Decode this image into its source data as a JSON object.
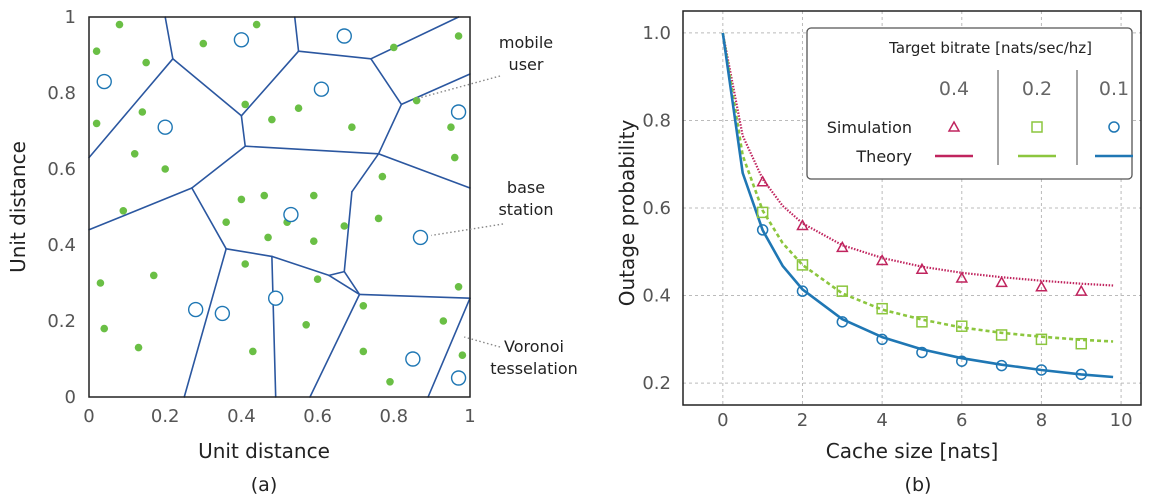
{
  "chart_data": [
    {
      "type": "scatter",
      "caption": "(a)",
      "xlabel": "Unit distance",
      "ylabel": "Unit distance",
      "xlim": [
        0,
        1
      ],
      "ylim": [
        0,
        1
      ],
      "xticks": [
        "0",
        "0.2",
        "0.4",
        "0.6",
        "0.8",
        "1"
      ],
      "yticks": [
        "0",
        "0.2",
        "0.4",
        "0.6",
        "0.8",
        "1"
      ],
      "colors": {
        "users": "#6abf45",
        "stations": "#1f77b4",
        "cells": "#2b57a0"
      },
      "annotations": [
        {
          "lines": [
            "mobile",
            "user"
          ],
          "x": 0.85,
          "y": 0.78
        },
        {
          "lines": [
            "base",
            "station"
          ],
          "x": 0.88,
          "y": 0.42
        },
        {
          "lines": [
            "Voronoi",
            "tesselation"
          ],
          "x": 0.99,
          "y": 0.15
        }
      ],
      "series": [
        {
          "name": "mobile user",
          "points": [
            [
              0.08,
              0.98
            ],
            [
              0.02,
              0.91
            ],
            [
              0.15,
              0.88
            ],
            [
              0.02,
              0.72
            ],
            [
              0.14,
              0.75
            ],
            [
              0.12,
              0.64
            ],
            [
              0.2,
              0.6
            ],
            [
              0.09,
              0.49
            ],
            [
              0.44,
              0.98
            ],
            [
              0.3,
              0.93
            ],
            [
              0.41,
              0.77
            ],
            [
              0.48,
              0.73
            ],
            [
              0.55,
              0.76
            ],
            [
              0.69,
              0.71
            ],
            [
              0.8,
              0.92
            ],
            [
              0.97,
              0.95
            ],
            [
              0.86,
              0.78
            ],
            [
              0.95,
              0.71
            ],
            [
              0.96,
              0.63
            ],
            [
              0.77,
              0.58
            ],
            [
              0.46,
              0.53
            ],
            [
              0.4,
              0.52
            ],
            [
              0.59,
              0.53
            ],
            [
              0.36,
              0.46
            ],
            [
              0.52,
              0.46
            ],
            [
              0.67,
              0.45
            ],
            [
              0.76,
              0.47
            ],
            [
              0.47,
              0.42
            ],
            [
              0.59,
              0.41
            ],
            [
              0.03,
              0.3
            ],
            [
              0.04,
              0.18
            ],
            [
              0.17,
              0.32
            ],
            [
              0.13,
              0.13
            ],
            [
              0.41,
              0.35
            ],
            [
              0.6,
              0.31
            ],
            [
              0.72,
              0.24
            ],
            [
              0.43,
              0.12
            ],
            [
              0.57,
              0.19
            ],
            [
              0.72,
              0.12
            ],
            [
              0.97,
              0.29
            ],
            [
              0.93,
              0.2
            ],
            [
              0.98,
              0.11
            ],
            [
              0.79,
              0.04
            ]
          ]
        },
        {
          "name": "base station",
          "points": [
            [
              0.04,
              0.83
            ],
            [
              0.4,
              0.94
            ],
            [
              0.67,
              0.95
            ],
            [
              0.61,
              0.81
            ],
            [
              0.2,
              0.71
            ],
            [
              0.97,
              0.75
            ],
            [
              0.53,
              0.48
            ],
            [
              0.87,
              0.42
            ],
            [
              0.28,
              0.23
            ],
            [
              0.35,
              0.22
            ],
            [
              0.49,
              0.26
            ],
            [
              0.85,
              0.1
            ],
            [
              0.97,
              0.05
            ]
          ]
        }
      ],
      "cell_edges": [
        [
          [
            0.2,
            1
          ],
          [
            0.22,
            0.89
          ]
        ],
        [
          [
            0.22,
            0.89
          ],
          [
            0.4,
            0.74
          ]
        ],
        [
          [
            0.22,
            0.89
          ],
          [
            0,
            0.63
          ]
        ],
        [
          [
            0.4,
            0.74
          ],
          [
            0.41,
            0.66
          ]
        ],
        [
          [
            0.41,
            0.66
          ],
          [
            0.27,
            0.55
          ]
        ],
        [
          [
            0.27,
            0.55
          ],
          [
            0.27,
            0.55
          ]
        ],
        [
          [
            0.27,
            0.55
          ],
          [
            0,
            0.44
          ]
        ],
        [
          [
            0.27,
            0.55
          ],
          [
            0.36,
            0.39
          ]
        ],
        [
          [
            0.36,
            0.39
          ],
          [
            0.25,
            0
          ]
        ],
        [
          [
            0.36,
            0.39
          ],
          [
            0.48,
            0.37
          ]
        ],
        [
          [
            0.48,
            0.37
          ],
          [
            0.63,
            0.32
          ]
        ],
        [
          [
            0.63,
            0.32
          ],
          [
            0.71,
            0.27
          ]
        ],
        [
          [
            0.71,
            0.27
          ],
          [
            1,
            0.26
          ]
        ],
        [
          [
            0.71,
            0.27
          ],
          [
            0.58,
            0
          ]
        ],
        [
          [
            0.48,
            0.37
          ],
          [
            0.49,
            0
          ]
        ],
        [
          [
            0.41,
            0.66
          ],
          [
            0.76,
            0.64
          ]
        ],
        [
          [
            0.76,
            0.64
          ],
          [
            1,
            0.55
          ]
        ],
        [
          [
            0.76,
            0.64
          ],
          [
            0.82,
            0.77
          ]
        ],
        [
          [
            0.82,
            0.77
          ],
          [
            0.74,
            0.89
          ]
        ],
        [
          [
            0.74,
            0.89
          ],
          [
            0.55,
            0.91
          ]
        ],
        [
          [
            0.55,
            0.91
          ],
          [
            0.4,
            0.74
          ]
        ],
        [
          [
            0.55,
            0.91
          ],
          [
            0.54,
            1
          ]
        ],
        [
          [
            0.74,
            0.89
          ],
          [
            0.97,
            1
          ]
        ],
        [
          [
            0.82,
            0.77
          ],
          [
            1,
            0.85
          ]
        ],
        [
          [
            0.76,
            0.64
          ],
          [
            0.69,
            0.54
          ]
        ],
        [
          [
            0.69,
            0.54
          ],
          [
            0.67,
            0.33
          ]
        ],
        [
          [
            0.67,
            0.33
          ],
          [
            0.63,
            0.32
          ]
        ],
        [
          [
            0.67,
            0.33
          ],
          [
            0.71,
            0.27
          ]
        ],
        [
          [
            1,
            0.26
          ],
          [
            0.89,
            0
          ]
        ]
      ]
    },
    {
      "type": "line",
      "caption": "(b)",
      "xlabel": "Cache size [nats]",
      "ylabel": "Outage probability",
      "xlim": [
        -1,
        10.5
      ],
      "ylim": [
        0.15,
        1.05
      ],
      "xticks": [
        "0",
        "2",
        "4",
        "6",
        "8",
        "10"
      ],
      "yticks": [
        "0.2",
        "0.4",
        "0.6",
        "0.8",
        "1.0"
      ],
      "grid": true,
      "legend": {
        "position": "top-right",
        "title": "Target bitrate [nats/sec/hz]",
        "columns": [
          "0.4",
          "0.2",
          "0.1"
        ],
        "rows": [
          "Simulation",
          "Theory"
        ]
      },
      "series": [
        {
          "bitrate": "0.4",
          "color": "#c0245e",
          "marker": "triangle",
          "simulation": {
            "x": [
              1,
              2,
              3,
              4,
              5,
              6,
              7,
              8,
              9
            ],
            "y": [
              0.66,
              0.56,
              0.51,
              0.48,
              0.46,
              0.44,
              0.43,
              0.42,
              0.41
            ]
          },
          "theory": {
            "x": [
              0,
              0.5,
              1,
              1.5,
              2,
              3,
              4,
              5,
              6,
              7,
              8,
              9,
              9.8
            ],
            "y": [
              1.0,
              0.765,
              0.666,
              0.605,
              0.565,
              0.515,
              0.486,
              0.466,
              0.452,
              0.442,
              0.434,
              0.427,
              0.423
            ]
          }
        },
        {
          "bitrate": "0.2",
          "color": "#8cc63e",
          "marker": "square",
          "simulation": {
            "x": [
              1,
              2,
              3,
              4,
              5,
              6,
              7,
              8,
              9
            ],
            "y": [
              0.59,
              0.47,
              0.41,
              0.37,
              0.34,
              0.33,
              0.31,
              0.3,
              0.29
            ]
          },
          "theory": {
            "x": [
              0,
              0.5,
              1,
              1.5,
              2,
              3,
              4,
              5,
              6,
              7,
              8,
              9,
              9.8
            ],
            "y": [
              1.0,
              0.72,
              0.594,
              0.52,
              0.47,
              0.405,
              0.368,
              0.345,
              0.327,
              0.315,
              0.306,
              0.299,
              0.295
            ]
          }
        },
        {
          "bitrate": "0.1",
          "color": "#1f77b4",
          "marker": "circle",
          "simulation": {
            "x": [
              1,
              2,
              3,
              4,
              5,
              6,
              7,
              8,
              9
            ],
            "y": [
              0.55,
              0.41,
              0.34,
              0.3,
              0.27,
              0.25,
              0.24,
              0.23,
              0.22
            ]
          },
          "theory": {
            "x": [
              0,
              0.5,
              1,
              1.5,
              2,
              3,
              4,
              5,
              6,
              7,
              8,
              9,
              9.8
            ],
            "y": [
              1.0,
              0.68,
              0.549,
              0.468,
              0.414,
              0.346,
              0.305,
              0.277,
              0.257,
              0.242,
              0.23,
              0.22,
              0.214
            ]
          }
        }
      ]
    }
  ]
}
